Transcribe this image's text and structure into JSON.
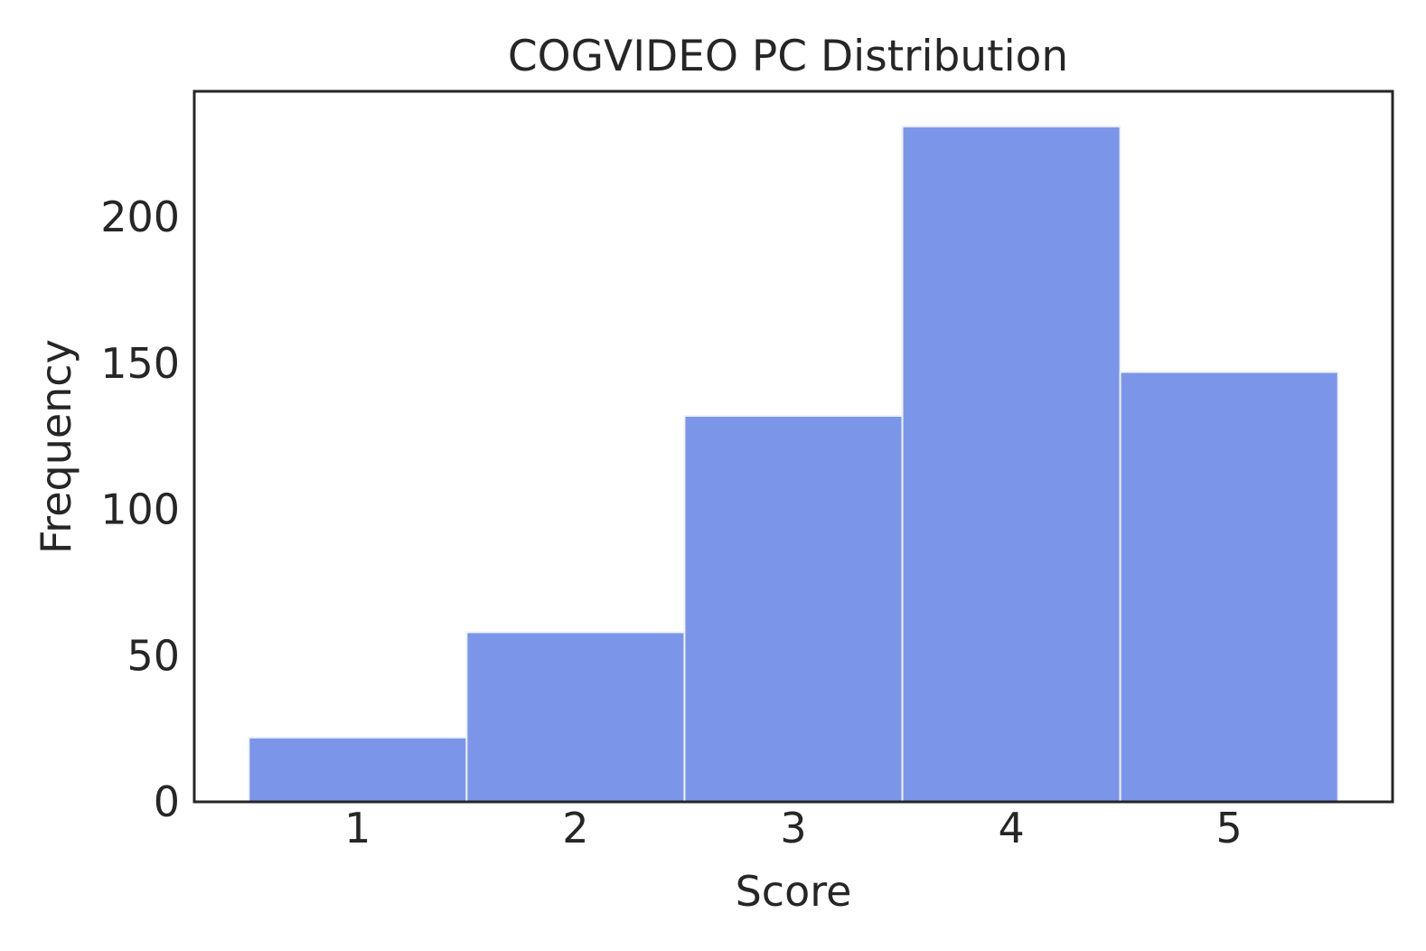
{
  "chart_data": {
    "type": "bar",
    "title": "COGVIDEO PC Distribution",
    "xlabel": "Score",
    "ylabel": "Frequency",
    "categories": [
      "1",
      "2",
      "3",
      "4",
      "5"
    ],
    "values": [
      22,
      58,
      132,
      231,
      147
    ],
    "xlim": [
      0.25,
      5.75
    ],
    "ylim": [
      0,
      243
    ],
    "yticks": [
      "0",
      "50",
      "100",
      "150",
      "200"
    ],
    "grid": false,
    "bar_color": "#7b96e8",
    "bar_edge_color": "#eef2ff",
    "frame_color": "#262626",
    "text_color": "#262626",
    "background": "#ffffff"
  }
}
